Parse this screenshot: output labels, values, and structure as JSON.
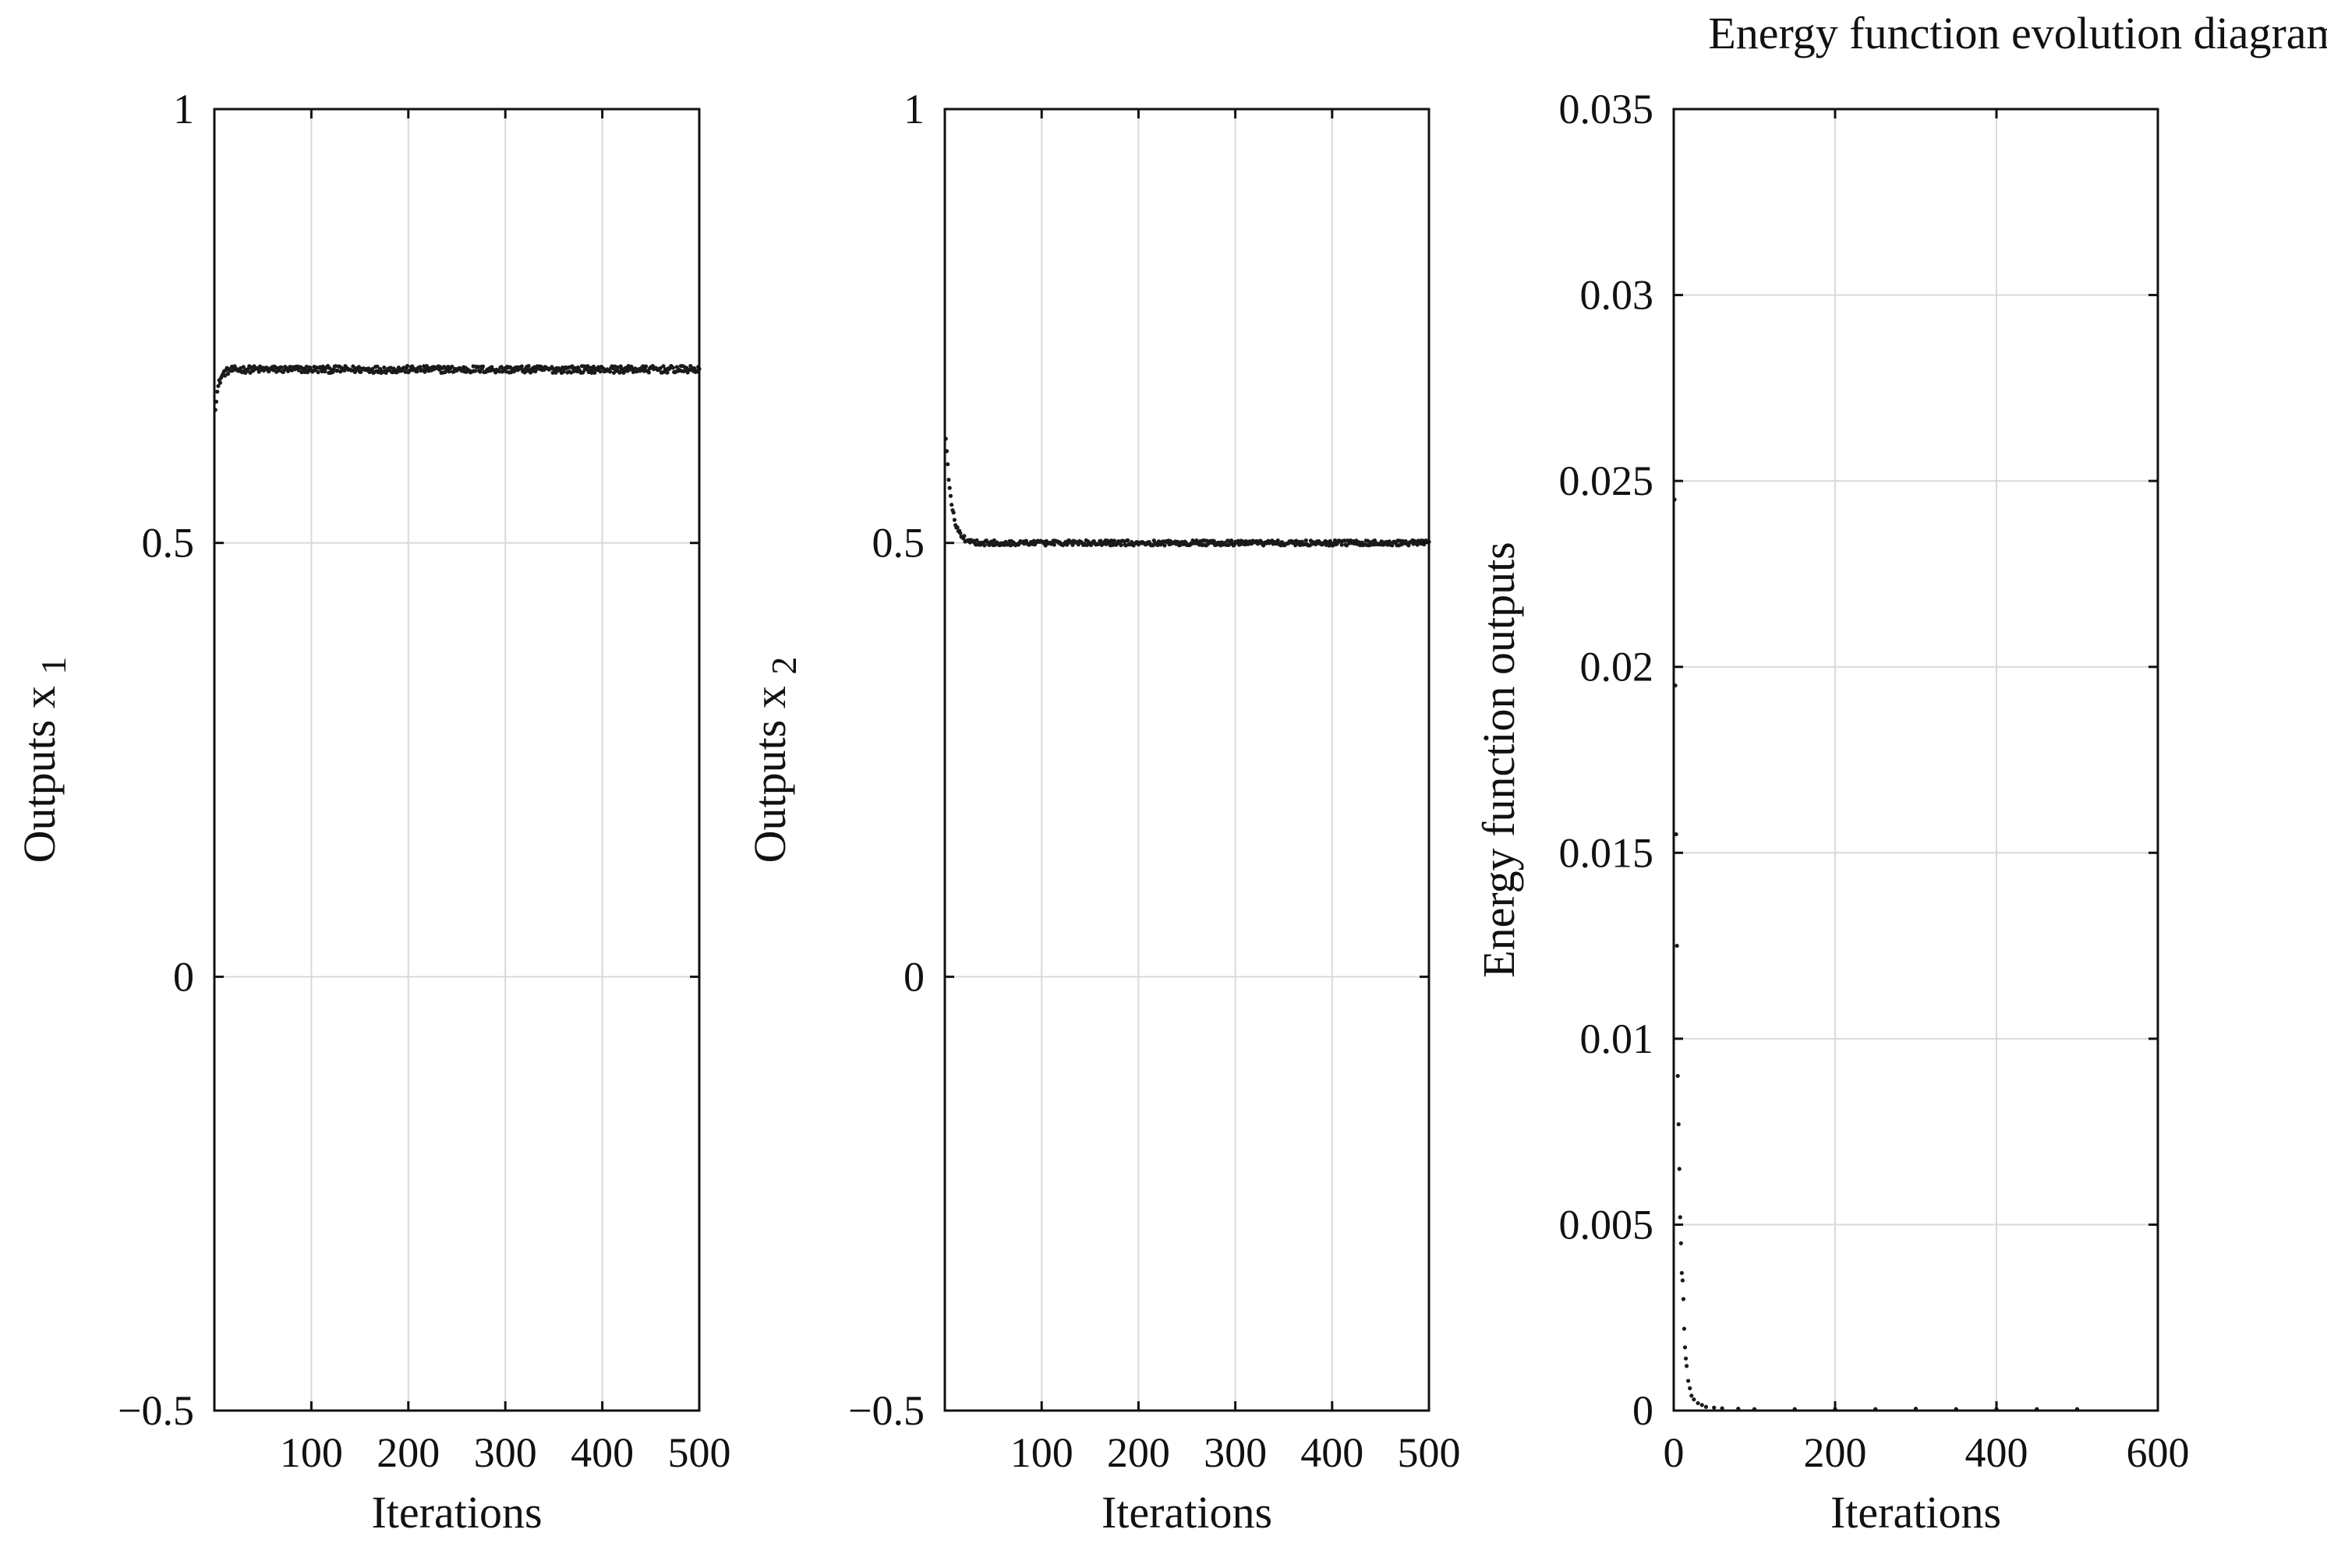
{
  "figure": {
    "background": "#ffffff",
    "axis_color": "#111111",
    "grid_color": "#d9d9d9",
    "trace_color": "#1a1a1a"
  },
  "chart_data": [
    {
      "type": "scatter",
      "id": "x1",
      "title": "",
      "xlabel": "Iterations",
      "ylabel": "Outputs x",
      "ylabel_subscript": "1",
      "xlim": [
        0,
        500
      ],
      "ylim": [
        -0.5,
        1
      ],
      "xticks": [
        100,
        200,
        300,
        400,
        500
      ],
      "xtick_labels": [
        "100",
        "200",
        "300",
        "400",
        "500"
      ],
      "yticks": [
        -0.5,
        0,
        0.5,
        1
      ],
      "ytick_labels": [
        "−0.5",
        "0",
        "0.5",
        "1"
      ],
      "grid": true,
      "series": [
        {
          "name": "x1",
          "start": 0.645,
          "steady": 0.7,
          "tau": 4,
          "noise": 0.004,
          "n": 500
        }
      ]
    },
    {
      "type": "scatter",
      "id": "x2",
      "title": "",
      "xlabel": "Iterations",
      "ylabel": "Outputs x",
      "ylabel_subscript": "2",
      "xlim": [
        0,
        500
      ],
      "ylim": [
        -0.5,
        1
      ],
      "xticks": [
        100,
        200,
        300,
        400,
        500
      ],
      "xtick_labels": [
        "100",
        "200",
        "300",
        "400",
        "500"
      ],
      "yticks": [
        -0.5,
        0,
        0.5,
        1
      ],
      "ytick_labels": [
        "−0.5",
        "0",
        "0.5",
        "1"
      ],
      "grid": true,
      "series": [
        {
          "name": "x2",
          "start": 0.645,
          "steady": 0.5,
          "tau": 6,
          "noise": 0.003,
          "n": 500
        }
      ]
    },
    {
      "type": "scatter",
      "id": "energy",
      "title": "Energy function evolution diagram",
      "xlabel": "Iterations",
      "ylabel": "Energy function outputs",
      "ylabel_subscript": "",
      "xlim": [
        0,
        600
      ],
      "ylim": [
        0,
        0.035
      ],
      "xticks": [
        0,
        200,
        400,
        600
      ],
      "xtick_labels": [
        "0",
        "200",
        "400",
        "600"
      ],
      "yticks": [
        0,
        0.005,
        0.01,
        0.015,
        0.02,
        0.025,
        0.03,
        0.035
      ],
      "ytick_labels": [
        "0",
        "0.005",
        "0.01",
        "0.015",
        "0.02",
        "0.025",
        "0.03",
        "0.035"
      ],
      "grid": true,
      "series": [
        {
          "name": "energy",
          "x": [
            1,
            2,
            3,
            4,
            5,
            6,
            7,
            8,
            9,
            10,
            11,
            12,
            13,
            14,
            15,
            16,
            18,
            20,
            22,
            25,
            30,
            35,
            40,
            50,
            60,
            80,
            100,
            150,
            200,
            250,
            300,
            350,
            400,
            450,
            500
          ],
          "y": [
            0.0245,
            0.0195,
            0.0155,
            0.0125,
            0.009,
            0.0077,
            0.0065,
            0.0052,
            0.0045,
            0.0037,
            0.0035,
            0.003,
            0.0022,
            0.0017,
            0.0014,
            0.0012,
            0.0008,
            0.0006,
            0.0004,
            0.0003,
            0.0002,
            0.00015,
            0.0001,
            8e-05,
            6e-05,
            5e-05,
            4e-05,
            4e-05,
            4e-05,
            4e-05,
            5e-05,
            4e-05,
            4e-05,
            4e-05,
            4e-05
          ]
        }
      ]
    }
  ]
}
